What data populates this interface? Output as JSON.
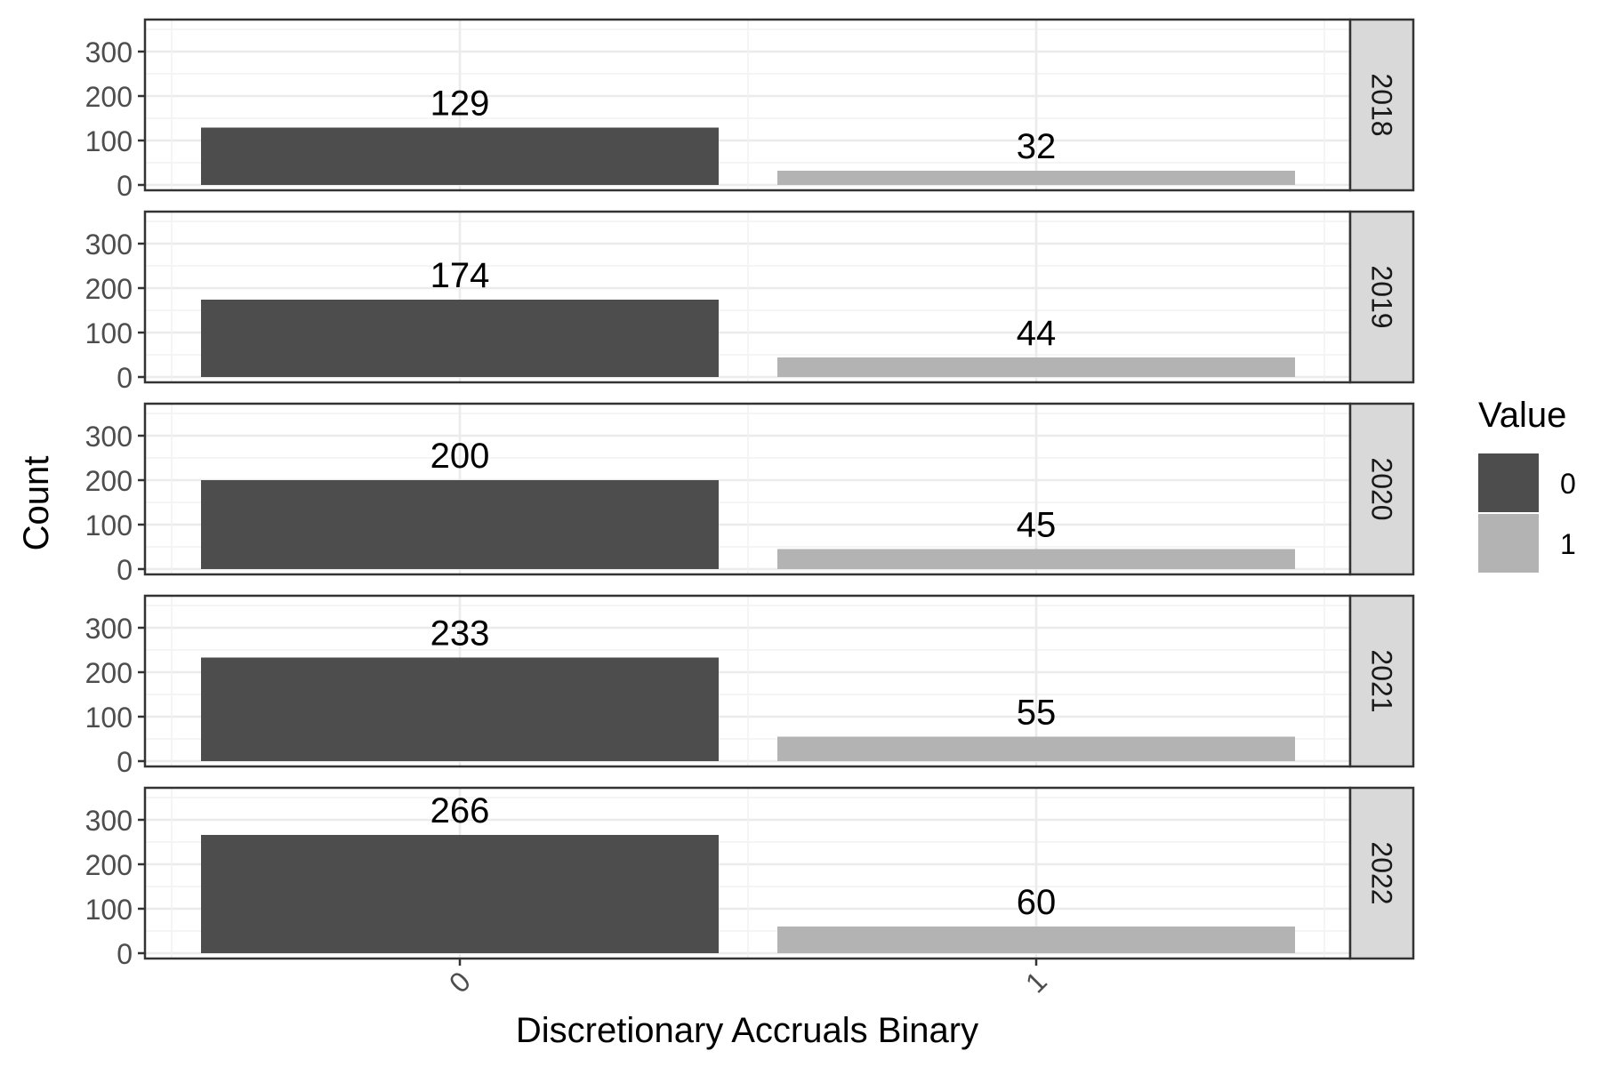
{
  "chart_data": {
    "type": "bar",
    "xlabel": "Discretionary Accruals Binary",
    "ylabel": "Count",
    "categories": [
      "0",
      "1"
    ],
    "ylim": [
      0,
      350
    ],
    "yticks": [
      0,
      100,
      200,
      300
    ],
    "grid": true,
    "legend": {
      "title": "Value",
      "position": "right",
      "entries": [
        {
          "label": "0",
          "color": "#4d4d4d"
        },
        {
          "label": "1",
          "color": "#b3b3b3"
        }
      ]
    },
    "facets": [
      {
        "label": "2018",
        "values": [
          129,
          32
        ]
      },
      {
        "label": "2019",
        "values": [
          174,
          44
        ]
      },
      {
        "label": "2020",
        "values": [
          200,
          45
        ]
      },
      {
        "label": "2021",
        "values": [
          233,
          55
        ]
      },
      {
        "label": "2022",
        "values": [
          266,
          60
        ]
      }
    ],
    "colors": {
      "0": "#4d4d4d",
      "1": "#b3b3b3"
    }
  }
}
